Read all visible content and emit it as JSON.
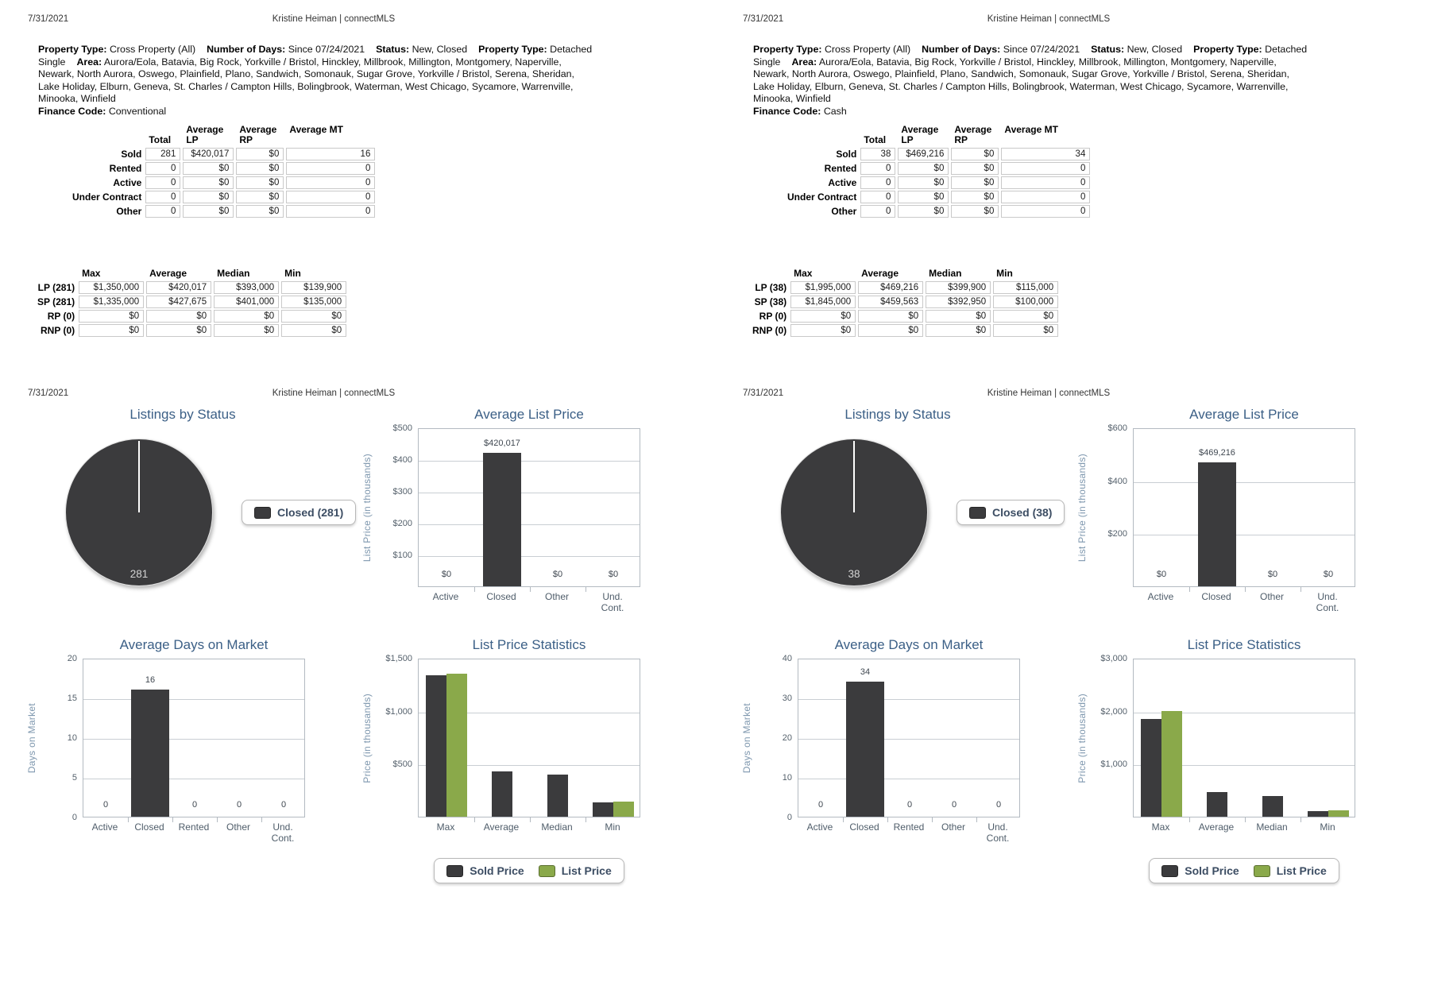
{
  "colors": {
    "dark": "#3b3b3d",
    "green": "#8aa94a",
    "title_blue": "#3b5f86",
    "steel_blue": "#7e97ae",
    "axis_text": "#55616c",
    "legend_text": "#3c4d63"
  },
  "pages": [
    {
      "date": "7/31/2021",
      "user": "Kristine Heiman | connectMLS",
      "criteria": {
        "items": [
          {
            "label": "Property Type:",
            "value": "Cross Property (All)"
          },
          {
            "label": "Number of Days:",
            "value": "Since 07/24/2021"
          },
          {
            "label": "Status:",
            "value": "New, Closed"
          },
          {
            "label": "Property Type:",
            "value": "Detached Single"
          },
          {
            "label": "Area:",
            "value": "Aurora/Eola, Batavia, Big Rock, Yorkville / Bristol, Hinckley, Millbrook, Millington, Montgomery, Naperville, Newark, North Aurora, Oswego, Plainfield, Plano, Sandwich, Somonauk, Sugar Grove, Yorkville / Bristol, Serena, Sheridan, Lake Holiday, Elburn, Geneva, St. Charles / Campton Hills, Bolingbrook, Waterman, West Chicago, Sycamore, Warrenville, Minooka, Winfield"
          },
          {
            "label": "Finance Code:",
            "value": "Conventional"
          }
        ]
      },
      "status_table": {
        "headers": [
          "Total",
          "Average LP",
          "Average RP",
          "Average MT"
        ],
        "rows": [
          {
            "label": "Sold",
            "values": [
              "281",
              "$420,017",
              "$0",
              "16"
            ]
          },
          {
            "label": "Rented",
            "values": [
              "0",
              "$0",
              "$0",
              "0"
            ]
          },
          {
            "label": "Active",
            "values": [
              "0",
              "$0",
              "$0",
              "0"
            ]
          },
          {
            "label": "Under Contract",
            "values": [
              "0",
              "$0",
              "$0",
              "0"
            ]
          },
          {
            "label": "Other",
            "values": [
              "0",
              "$0",
              "$0",
              "0"
            ]
          }
        ]
      },
      "price_table": {
        "headers": [
          "Max",
          "Average",
          "Median",
          "Min"
        ],
        "rows": [
          {
            "label": "LP (281)",
            "values": [
              "$1,350,000",
              "$420,017",
              "$393,000",
              "$139,900"
            ]
          },
          {
            "label": "SP (281)",
            "values": [
              "$1,335,000",
              "$427,675",
              "$401,000",
              "$135,000"
            ]
          },
          {
            "label": "RP (0)",
            "values": [
              "$0",
              "$0",
              "$0",
              "$0"
            ]
          },
          {
            "label": "RNP (0)",
            "values": [
              "$0",
              "$0",
              "$0",
              "$0"
            ]
          }
        ]
      }
    },
    {
      "date": "7/31/2021",
      "user": "Kristine Heiman | connectMLS",
      "criteria": {
        "items": [
          {
            "label": "Property Type:",
            "value": "Cross Property (All)"
          },
          {
            "label": "Number of Days:",
            "value": "Since 07/24/2021"
          },
          {
            "label": "Status:",
            "value": "New, Closed"
          },
          {
            "label": "Property Type:",
            "value": "Detached Single"
          },
          {
            "label": "Area:",
            "value": "Aurora/Eola, Batavia, Big Rock, Yorkville / Bristol, Hinckley, Millbrook, Millington, Montgomery, Naperville, Newark, North Aurora, Oswego, Plainfield, Plano, Sandwich, Somonauk, Sugar Grove, Yorkville / Bristol, Serena, Sheridan, Lake Holiday, Elburn, Geneva, St. Charles / Campton Hills, Bolingbrook, Waterman, West Chicago, Sycamore, Warrenville, Minooka, Winfield"
          },
          {
            "label": "Finance Code:",
            "value": "Cash"
          }
        ]
      },
      "status_table": {
        "headers": [
          "Total",
          "Average LP",
          "Average RP",
          "Average MT"
        ],
        "rows": [
          {
            "label": "Sold",
            "values": [
              "38",
              "$469,216",
              "$0",
              "34"
            ]
          },
          {
            "label": "Rented",
            "values": [
              "0",
              "$0",
              "$0",
              "0"
            ]
          },
          {
            "label": "Active",
            "values": [
              "0",
              "$0",
              "$0",
              "0"
            ]
          },
          {
            "label": "Under Contract",
            "values": [
              "0",
              "$0",
              "$0",
              "0"
            ]
          },
          {
            "label": "Other",
            "values": [
              "0",
              "$0",
              "$0",
              "0"
            ]
          }
        ]
      },
      "price_table": {
        "headers": [
          "Max",
          "Average",
          "Median",
          "Min"
        ],
        "rows": [
          {
            "label": "LP (38)",
            "values": [
              "$1,995,000",
              "$469,216",
              "$399,900",
              "$115,000"
            ]
          },
          {
            "label": "SP (38)",
            "values": [
              "$1,845,000",
              "$459,563",
              "$392,950",
              "$100,000"
            ]
          },
          {
            "label": "RP (0)",
            "values": [
              "$0",
              "$0",
              "$0",
              "$0"
            ]
          },
          {
            "label": "RNP (0)",
            "values": [
              "$0",
              "$0",
              "$0",
              "$0"
            ]
          }
        ]
      }
    }
  ],
  "chart_data": [
    {
      "page": 0,
      "type": "pie",
      "title": "Listings by Status",
      "slices": [
        {
          "label": "Closed",
          "value": 281,
          "color": "dark"
        }
      ],
      "count_label": "281",
      "legend": [
        {
          "label": "Closed (281)",
          "color": "dark"
        }
      ],
      "legend_position": "right"
    },
    {
      "page": 0,
      "type": "bar",
      "title": "Average List Price",
      "ylabel": "List Price (in thousands)",
      "ymax": 500,
      "yticks": [
        {
          "label": "$100",
          "value": 100
        },
        {
          "label": "$200",
          "value": 200
        },
        {
          "label": "$300",
          "value": 300
        },
        {
          "label": "$400",
          "value": 400
        },
        {
          "label": "$500",
          "value": 500
        }
      ],
      "categories": [
        "Active",
        "Closed",
        "Other",
        "Und.\nCont."
      ],
      "values": [
        0,
        420.017,
        0,
        0
      ],
      "value_labels": [
        "$0",
        "$420,017",
        "$0",
        "$0"
      ],
      "grid": true
    },
    {
      "page": 0,
      "type": "bar",
      "title": "Average Days on Market",
      "ylabel": "Days on Market",
      "ymax": 20,
      "yticks": [
        {
          "label": "0",
          "value": 0
        },
        {
          "label": "5",
          "value": 5
        },
        {
          "label": "10",
          "value": 10
        },
        {
          "label": "15",
          "value": 15
        },
        {
          "label": "20",
          "value": 20
        }
      ],
      "categories": [
        "Active",
        "Closed",
        "Rented",
        "Other",
        "Und.\nCont."
      ],
      "values": [
        0,
        16,
        0,
        0,
        0
      ],
      "value_labels": [
        "0",
        "16",
        "0",
        "0",
        "0"
      ],
      "grid": true
    },
    {
      "page": 0,
      "type": "grouped-bar",
      "title": "List Price Statistics",
      "ylabel": "Price (in thousands)",
      "ymax": 1500,
      "yticks": [
        {
          "label": "$500",
          "value": 500
        },
        {
          "label": "$1,000",
          "value": 1000
        },
        {
          "label": "$1,500",
          "value": 1500
        }
      ],
      "categories": [
        "Max",
        "Average",
        "Median",
        "Min"
      ],
      "series": [
        {
          "name": "Sold Price",
          "color": "dark",
          "values": [
            1335,
            427.675,
            401,
            135
          ]
        },
        {
          "name": "List Price",
          "color": "green",
          "values": [
            1350,
            null,
            null,
            139.9
          ]
        }
      ],
      "legend": [
        {
          "label": "Sold Price",
          "color": "dark"
        },
        {
          "label": "List Price",
          "color": "green"
        }
      ],
      "legend_position": "bottom",
      "grid": true
    },
    {
      "page": 1,
      "type": "pie",
      "title": "Listings by Status",
      "slices": [
        {
          "label": "Closed",
          "value": 38,
          "color": "dark"
        }
      ],
      "count_label": "38",
      "legend": [
        {
          "label": "Closed (38)",
          "color": "dark"
        }
      ],
      "legend_position": "right"
    },
    {
      "page": 1,
      "type": "bar",
      "title": "Average List Price",
      "ylabel": "List Price (in thousands)",
      "ymax": 600,
      "yticks": [
        {
          "label": "$200",
          "value": 200
        },
        {
          "label": "$400",
          "value": 400
        },
        {
          "label": "$600",
          "value": 600
        }
      ],
      "categories": [
        "Active",
        "Closed",
        "Other",
        "Und.\nCont."
      ],
      "values": [
        0,
        469.216,
        0,
        0
      ],
      "value_labels": [
        "$0",
        "$469,216",
        "$0",
        "$0"
      ],
      "grid": true
    },
    {
      "page": 1,
      "type": "bar",
      "title": "Average Days on Market",
      "ylabel": "Days on Market",
      "ymax": 40,
      "yticks": [
        {
          "label": "0",
          "value": 0
        },
        {
          "label": "10",
          "value": 10
        },
        {
          "label": "20",
          "value": 20
        },
        {
          "label": "30",
          "value": 30
        },
        {
          "label": "40",
          "value": 40
        }
      ],
      "categories": [
        "Active",
        "Closed",
        "Rented",
        "Other",
        "Und.\nCont."
      ],
      "values": [
        0,
        34,
        0,
        0,
        0
      ],
      "value_labels": [
        "0",
        "34",
        "0",
        "0",
        "0"
      ],
      "grid": true
    },
    {
      "page": 1,
      "type": "grouped-bar",
      "title": "List Price Statistics",
      "ylabel": "Price (in thousands)",
      "ymax": 3000,
      "yticks": [
        {
          "label": "$1,000",
          "value": 1000
        },
        {
          "label": "$2,000",
          "value": 2000
        },
        {
          "label": "$3,000",
          "value": 3000
        }
      ],
      "categories": [
        "Max",
        "Average",
        "Median",
        "Min"
      ],
      "series": [
        {
          "name": "Sold Price",
          "color": "dark",
          "values": [
            1845,
            459.563,
            392.95,
            100
          ]
        },
        {
          "name": "List Price",
          "color": "green",
          "values": [
            1995,
            null,
            null,
            115
          ]
        }
      ],
      "legend": [
        {
          "label": "Sold Price",
          "color": "dark"
        },
        {
          "label": "List Price",
          "color": "green"
        }
      ],
      "legend_position": "bottom",
      "grid": true
    }
  ]
}
